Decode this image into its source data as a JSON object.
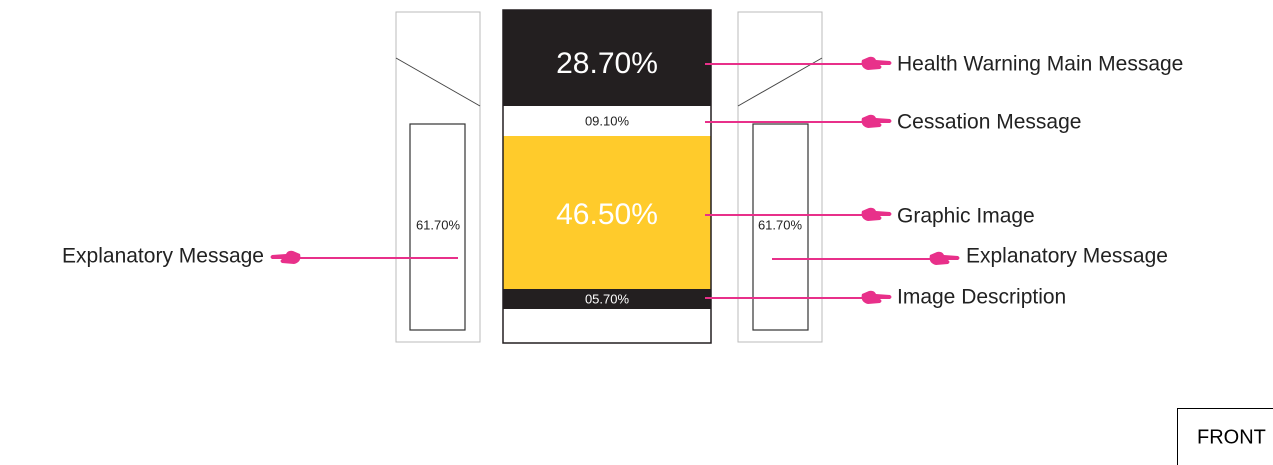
{
  "front_panel": {
    "segments": [
      "28.70%",
      "09.10%",
      "46.50%",
      "05.70%"
    ]
  },
  "side_panels": [
    "61.70%",
    "61.70%"
  ],
  "callouts": {
    "main_message": "Health Warning Main Message",
    "cessation": "Cessation Message",
    "graphic": "Graphic Image",
    "explanatory_left": "Explanatory Message",
    "explanatory_right": "Explanatory Message",
    "description": "Image Description"
  },
  "view_label": "FRONT"
}
